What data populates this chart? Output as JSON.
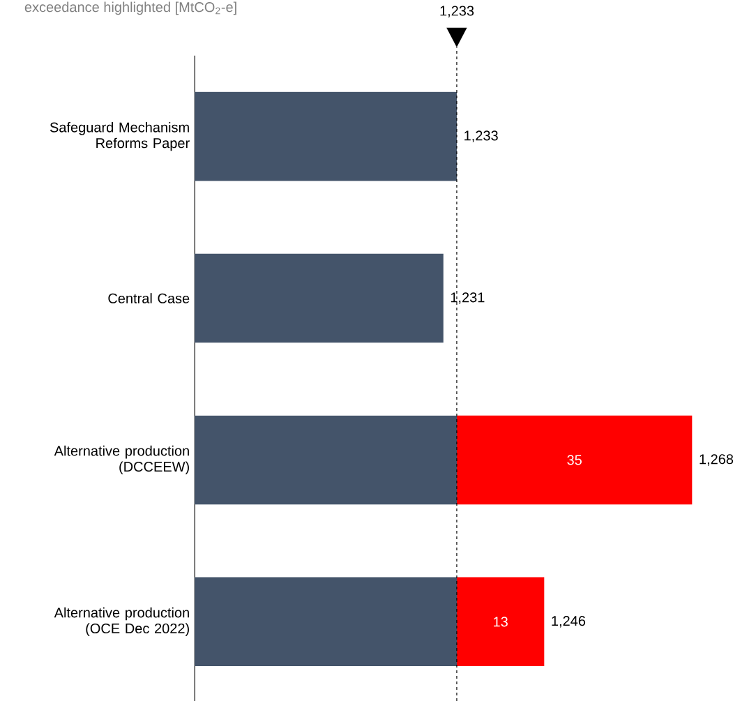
{
  "chart_data": {
    "type": "bar",
    "orientation": "horizontal",
    "stacked": true,
    "subtitle": "exceedance highlighted [MtCO$_{2}$-e]",
    "categories": [
      "Safeguard Mechanism Reforms Paper",
      "Central Case",
      "Alternative production (DCCEEW)",
      "Alternative production (OCE Dec 2022)"
    ],
    "series": [
      {
        "color": "#44546a",
        "values": [
          1233,
          1231,
          1233,
          1233
        ]
      },
      {
        "color": "#ff0000",
        "values": [
          null,
          null,
          35,
          13
        ],
        "value_labels": [
          null,
          null,
          "35",
          "13"
        ]
      }
    ],
    "totals": [
      "1,233",
      "1,231",
      "1,268",
      "1,246"
    ],
    "tick_labels": "y",
    "ref_lines": [
      {
        "axis": "x",
        "value": 1233,
        "label": "1,233",
        "line_style": "dashed"
      }
    ]
  }
}
